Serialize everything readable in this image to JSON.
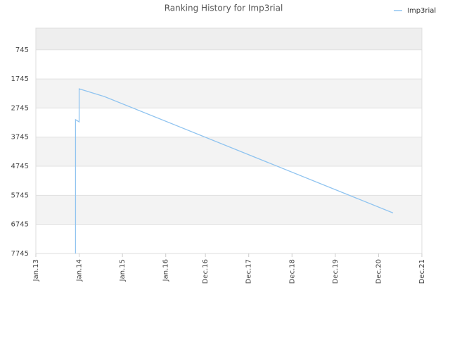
{
  "chart_data": {
    "type": "line",
    "title": "Ranking History for Imp3rial",
    "x": [
      "2013-12",
      "2013-12",
      "2014-01",
      "2014-01",
      "2014-08",
      "2021-04"
    ],
    "series": [
      {
        "name": "Imp3rial",
        "color": "#90c4f0",
        "values": [
          7745,
          3145,
          3220,
          2085,
          2350,
          6350
        ]
      }
    ],
    "xlim": [
      "2013-01",
      "2021-12"
    ],
    "xticks": [
      {
        "value": "2013-01",
        "label": "Jan.13"
      },
      {
        "value": "2014-01",
        "label": "Jan.14"
      },
      {
        "value": "2015-01",
        "label": "Jan.15"
      },
      {
        "value": "2016-01",
        "label": "Jan.16"
      },
      {
        "value": "2016-12",
        "label": "Dec.16"
      },
      {
        "value": "2017-12",
        "label": "Dec.17"
      },
      {
        "value": "2018-12",
        "label": "Dec.18"
      },
      {
        "value": "2019-12",
        "label": "Dec.19"
      },
      {
        "value": "2020-12",
        "label": "Dec.20"
      },
      {
        "value": "2021-12",
        "label": "Dec.21"
      }
    ],
    "ylim": [
      7745,
      0
    ],
    "yticks": [
      745,
      1745,
      2745,
      3745,
      4745,
      5745,
      6745,
      7745
    ],
    "legend": "top-right"
  }
}
